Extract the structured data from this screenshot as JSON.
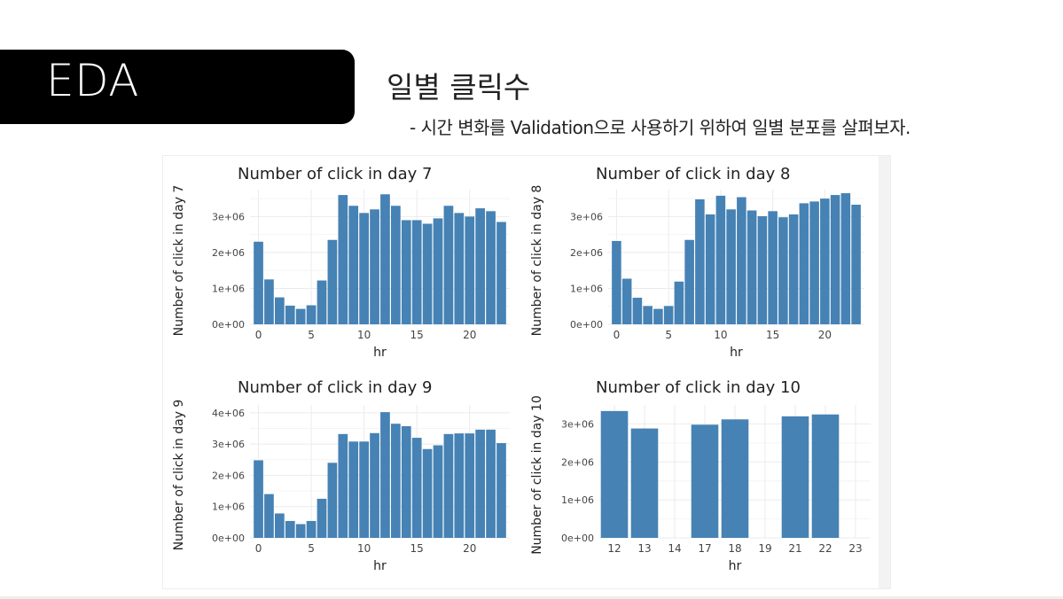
{
  "slide": {
    "badge": "EDA",
    "title": "일별 클릭수",
    "subtitle": "- 시간 변화를 Validation으로 사용하기 위하여 일별 분포를 살펴보자."
  },
  "colors": {
    "bar": "#4682b4",
    "grid": "#ebebeb",
    "text": "#222222"
  },
  "chart_data": [
    {
      "type": "bar",
      "title": "Number of click in day 7",
      "xlabel": "hr",
      "ylabel": "Number of click in day 7",
      "x": [
        0,
        1,
        2,
        3,
        4,
        5,
        6,
        7,
        8,
        9,
        10,
        11,
        12,
        13,
        14,
        15,
        16,
        17,
        18,
        19,
        20,
        21,
        22,
        23
      ],
      "values": [
        2300000,
        1250000,
        750000,
        520000,
        430000,
        530000,
        1220000,
        2350000,
        3600000,
        3300000,
        3100000,
        3200000,
        3620000,
        3300000,
        2900000,
        2900000,
        2800000,
        2950000,
        3300000,
        3100000,
        3000000,
        3230000,
        3150000,
        2850000
      ],
      "ylim": [
        0,
        3750000
      ],
      "xlim": [
        -0.8,
        23.8
      ],
      "yticks": [
        0,
        1000000,
        2000000,
        3000000
      ],
      "ytick_labels": [
        "0e+00",
        "1e+06",
        "2e+06",
        "3e+06"
      ],
      "xticks": [
        0,
        5,
        10,
        15,
        20
      ],
      "xtick_labels": [
        "0",
        "5",
        "10",
        "15",
        "20"
      ],
      "grid": true
    },
    {
      "type": "bar",
      "title": "Number of click in day 8",
      "xlabel": "hr",
      "ylabel": "Number of click in day 8",
      "x": [
        0,
        1,
        2,
        3,
        4,
        5,
        6,
        7,
        8,
        9,
        10,
        11,
        12,
        13,
        14,
        15,
        16,
        17,
        18,
        19,
        20,
        21,
        22,
        23
      ],
      "values": [
        2320000,
        1270000,
        740000,
        510000,
        430000,
        510000,
        1190000,
        2350000,
        3480000,
        3060000,
        3580000,
        3200000,
        3540000,
        3170000,
        3010000,
        3150000,
        2980000,
        3060000,
        3370000,
        3420000,
        3500000,
        3600000,
        3650000,
        3330000
      ],
      "ylim": [
        0,
        3750000
      ],
      "xlim": [
        -0.8,
        23.8
      ],
      "yticks": [
        0,
        1000000,
        2000000,
        3000000
      ],
      "ytick_labels": [
        "0e+00",
        "1e+06",
        "2e+06",
        "3e+06"
      ],
      "xticks": [
        0,
        5,
        10,
        15,
        20
      ],
      "xtick_labels": [
        "0",
        "5",
        "10",
        "15",
        "20"
      ],
      "grid": true
    },
    {
      "type": "bar",
      "title": "Number of click in day 9",
      "xlabel": "hr",
      "ylabel": "Number of click in day 9",
      "x": [
        0,
        1,
        2,
        3,
        4,
        5,
        6,
        7,
        8,
        9,
        10,
        11,
        12,
        13,
        14,
        15,
        16,
        17,
        18,
        19,
        20,
        21,
        22,
        23
      ],
      "values": [
        2480000,
        1400000,
        780000,
        540000,
        440000,
        540000,
        1250000,
        2400000,
        3320000,
        3080000,
        3080000,
        3350000,
        4020000,
        3650000,
        3570000,
        3200000,
        2840000,
        2960000,
        3320000,
        3340000,
        3340000,
        3460000,
        3460000,
        3030000
      ],
      "ylim": [
        0,
        4250000
      ],
      "xlim": [
        -0.8,
        23.8
      ],
      "yticks": [
        0,
        1000000,
        2000000,
        3000000,
        4000000
      ],
      "ytick_labels": [
        "0e+00",
        "1e+06",
        "2e+06",
        "3e+06",
        "4e+06"
      ],
      "xticks": [
        0,
        5,
        10,
        15,
        20
      ],
      "xtick_labels": [
        "0",
        "5",
        "10",
        "15",
        "20"
      ],
      "grid": true
    },
    {
      "type": "bar",
      "title": "Number of click in day 10",
      "xlabel": "hr",
      "ylabel": "Number of click in day 10",
      "x": [
        0,
        1,
        3,
        4,
        6,
        7
      ],
      "values": [
        3340000,
        2880000,
        2980000,
        3120000,
        3200000,
        3250000
      ],
      "ylim": [
        0,
        3500000
      ],
      "xlim": [
        -0.5,
        8.5
      ],
      "yticks": [
        0,
        1000000,
        2000000,
        3000000
      ],
      "ytick_labels": [
        "0e+00",
        "1e+06",
        "2e+06",
        "3e+06"
      ],
      "xticks": [
        0,
        1,
        2,
        3,
        4,
        5,
        6,
        7,
        8
      ],
      "xtick_labels": [
        "12",
        "13",
        "14",
        "17",
        "18",
        "19",
        "21",
        "22",
        "23"
      ],
      "grid": true
    }
  ]
}
